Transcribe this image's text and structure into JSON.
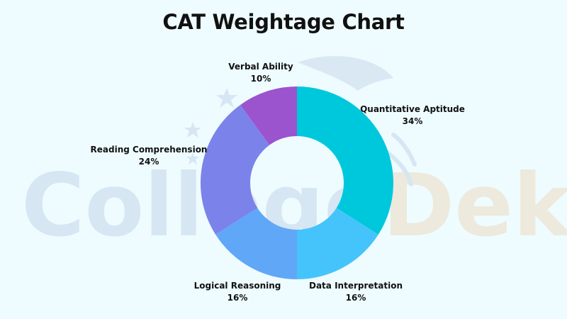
{
  "watermark": {
    "text_part1": "College",
    "text_part2": "Dekho",
    "color1": "#d7e6f3",
    "color2": "#ede9dc"
  },
  "chart_data": {
    "type": "pie",
    "title": "CAT Weightage Chart",
    "donut": true,
    "start_angle_deg": 0,
    "direction": "clockwise",
    "units": "%",
    "slices": [
      {
        "label": "Quantitative Aptitude",
        "value": 34,
        "value_label": "34%",
        "color": "#00c8dc"
      },
      {
        "label": "Data Interpretation",
        "value": 16,
        "value_label": "16%",
        "color": "#45c4fb"
      },
      {
        "label": "Logical Reasoning",
        "value": 16,
        "value_label": "16%",
        "color": "#61a7f8"
      },
      {
        "label": "Reading Comprehension",
        "value": 24,
        "value_label": "24%",
        "color": "#7b83ea"
      },
      {
        "label": "Verbal Ability",
        "value": 10,
        "value_label": "10%",
        "color": "#9b54ce"
      }
    ]
  }
}
